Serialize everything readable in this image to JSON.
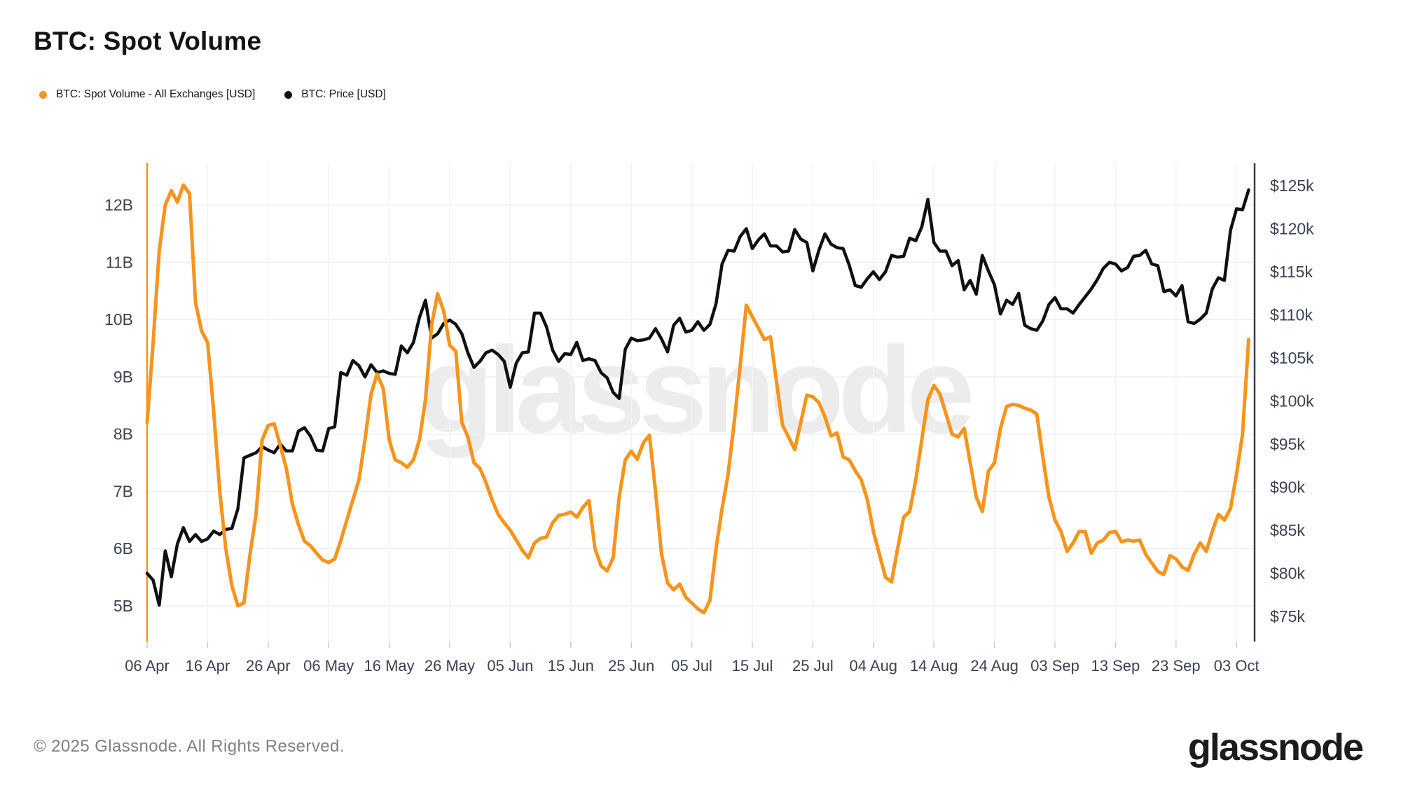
{
  "header": {
    "title": "BTC: Spot Volume"
  },
  "legend": [
    {
      "label": "BTC: Spot Volume - All Exchanges [USD]",
      "color": "#f7941d"
    },
    {
      "label": "BTC: Price [USD]",
      "color": "#0f1011"
    }
  ],
  "watermark": "glassnode",
  "footer": {
    "copyright": "© 2025 Glassnode. All Rights Reserved.",
    "brand": "glassnode"
  },
  "chart_data": {
    "type": "line",
    "title": "BTC: Spot Volume",
    "grid": true,
    "legend_position": "top-left",
    "x_ticks": [
      "06 Apr",
      "16 Apr",
      "26 Apr",
      "06 May",
      "16 May",
      "26 May",
      "05 Jun",
      "15 Jun",
      "25 Jun",
      "05 Jul",
      "15 Jul",
      "25 Jul",
      "04 Aug",
      "14 Aug",
      "24 Aug",
      "03 Sep",
      "13 Sep",
      "23 Sep",
      "03 Oct"
    ],
    "x_unit": "date (daily, 2025)",
    "y_axis_left": {
      "ticks": [
        "12B",
        "11B",
        "10B",
        "9B",
        "8B",
        "7B",
        "6B",
        "5B"
      ],
      "values": [
        12,
        11,
        10,
        9,
        8,
        7,
        6,
        5
      ],
      "unit": "USD billions",
      "range_shown": [
        5,
        12
      ]
    },
    "y_axis_right": {
      "ticks": [
        "$125k",
        "$120k",
        "$115k",
        "$110k",
        "$105k",
        "$100k",
        "$95k",
        "$90k",
        "$85k",
        "$80k",
        "$75k"
      ],
      "values": [
        125,
        120,
        115,
        110,
        105,
        100,
        95,
        90,
        85,
        80,
        75
      ],
      "unit": "USD thousands",
      "range_shown": [
        75,
        125
      ]
    },
    "series": [
      {
        "name": "BTC: Price [USD]",
        "color": "#0f1011",
        "axis": "right",
        "unit": "USD thousands",
        "values": [
          80.0,
          79.2,
          76.3,
          82.6,
          79.6,
          83.4,
          85.3,
          83.7,
          84.5,
          83.7,
          84.0,
          84.9,
          84.5,
          85.1,
          85.2,
          87.5,
          93.4,
          93.7,
          94.0,
          94.7,
          94.3,
          94.0,
          95.0,
          94.2,
          94.2,
          96.5,
          96.9,
          95.9,
          94.3,
          94.2,
          96.8,
          97.0,
          103.3,
          103.0,
          104.7,
          104.1,
          102.8,
          104.2,
          103.3,
          103.5,
          103.2,
          103.1,
          106.4,
          105.6,
          106.8,
          109.7,
          111.7,
          107.3,
          107.8,
          109.0,
          109.4,
          108.9,
          107.8,
          105.6,
          103.9,
          104.6,
          105.6,
          105.9,
          105.4,
          104.6,
          101.6,
          104.4,
          105.6,
          105.7,
          110.2,
          110.2,
          108.6,
          105.9,
          104.6,
          105.5,
          105.4,
          106.8,
          104.7,
          104.9,
          104.7,
          103.3,
          102.7,
          101.0,
          100.3,
          106.0,
          107.3,
          107.0,
          107.1,
          107.3,
          108.4,
          107.2,
          105.7,
          108.8,
          109.6,
          108.0,
          108.2,
          109.2,
          108.2,
          108.9,
          111.3,
          115.9,
          117.5,
          117.4,
          119.1,
          120.0,
          117.7,
          118.7,
          119.4,
          118.0,
          118.0,
          117.3,
          117.4,
          119.9,
          118.8,
          118.4,
          115.1,
          117.5,
          119.4,
          118.2,
          117.8,
          117.7,
          115.8,
          113.4,
          113.2,
          114.2,
          115.0,
          114.1,
          115.0,
          116.9,
          116.7,
          116.8,
          118.9,
          118.6,
          120.2,
          123.4,
          118.4,
          117.4,
          117.4,
          115.7,
          116.3,
          112.9,
          114.0,
          112.4,
          116.9,
          115.1,
          113.5,
          110.1,
          111.7,
          111.2,
          112.5,
          108.8,
          108.4,
          108.2,
          109.3,
          111.2,
          112.0,
          110.7,
          110.7,
          110.2,
          111.2,
          112.1,
          113.0,
          114.1,
          115.4,
          116.1,
          115.9,
          115.1,
          115.5,
          116.8,
          116.9,
          117.5,
          115.9,
          115.7,
          112.7,
          112.9,
          112.2,
          113.4,
          109.2,
          109.0,
          109.5,
          110.2,
          113.0,
          114.3,
          114.0,
          119.8,
          122.3,
          122.2,
          124.5
        ]
      },
      {
        "name": "BTC: Spot Volume - All Exchanges [USD]",
        "color": "#f7941d",
        "axis": "left",
        "unit": "USD billions",
        "values": [
          8.2,
          9.6,
          11.2,
          12.0,
          12.25,
          12.05,
          12.35,
          12.2,
          10.3,
          9.8,
          9.6,
          8.4,
          7.0,
          6.0,
          5.35,
          5.0,
          5.05,
          5.9,
          6.6,
          7.9,
          8.15,
          8.18,
          7.8,
          7.4,
          6.78,
          6.42,
          6.13,
          6.05,
          5.92,
          5.8,
          5.76,
          5.82,
          6.14,
          6.5,
          6.85,
          7.2,
          7.9,
          8.7,
          9.05,
          8.8,
          7.9,
          7.55,
          7.5,
          7.42,
          7.55,
          7.9,
          8.6,
          9.9,
          10.45,
          10.15,
          9.55,
          9.45,
          8.2,
          7.95,
          7.5,
          7.4,
          7.15,
          6.85,
          6.6,
          6.45,
          6.32,
          6.15,
          5.97,
          5.84,
          6.1,
          6.18,
          6.2,
          6.45,
          6.58,
          6.6,
          6.64,
          6.55,
          6.72,
          6.84,
          6.0,
          5.7,
          5.61,
          5.84,
          6.9,
          7.55,
          7.7,
          7.56,
          7.85,
          7.98,
          7.0,
          5.9,
          5.4,
          5.28,
          5.38,
          5.15,
          5.05,
          4.95,
          4.88,
          5.1,
          6.0,
          6.7,
          7.3,
          8.2,
          9.2,
          10.25,
          10.05,
          9.85,
          9.65,
          9.7,
          8.9,
          8.15,
          7.95,
          7.73,
          8.2,
          8.68,
          8.65,
          8.55,
          8.3,
          7.97,
          8.02,
          7.6,
          7.55,
          7.36,
          7.2,
          6.85,
          6.3,
          5.9,
          5.5,
          5.42,
          6.0,
          6.55,
          6.65,
          7.2,
          7.9,
          8.6,
          8.85,
          8.7,
          8.35,
          8.0,
          7.95,
          8.1,
          7.5,
          6.9,
          6.65,
          7.35,
          7.5,
          8.1,
          8.48,
          8.52,
          8.5,
          8.45,
          8.42,
          8.35,
          7.6,
          6.9,
          6.5,
          6.3,
          5.95,
          6.1,
          6.3,
          6.3,
          5.92,
          6.1,
          6.15,
          6.28,
          6.3,
          6.12,
          6.15,
          6.13,
          6.15,
          5.9,
          5.75,
          5.6,
          5.55,
          5.88,
          5.82,
          5.68,
          5.62,
          5.9,
          6.1,
          5.95,
          6.3,
          6.6,
          6.5,
          6.7,
          7.3,
          8.0,
          9.65
        ]
      }
    ]
  }
}
